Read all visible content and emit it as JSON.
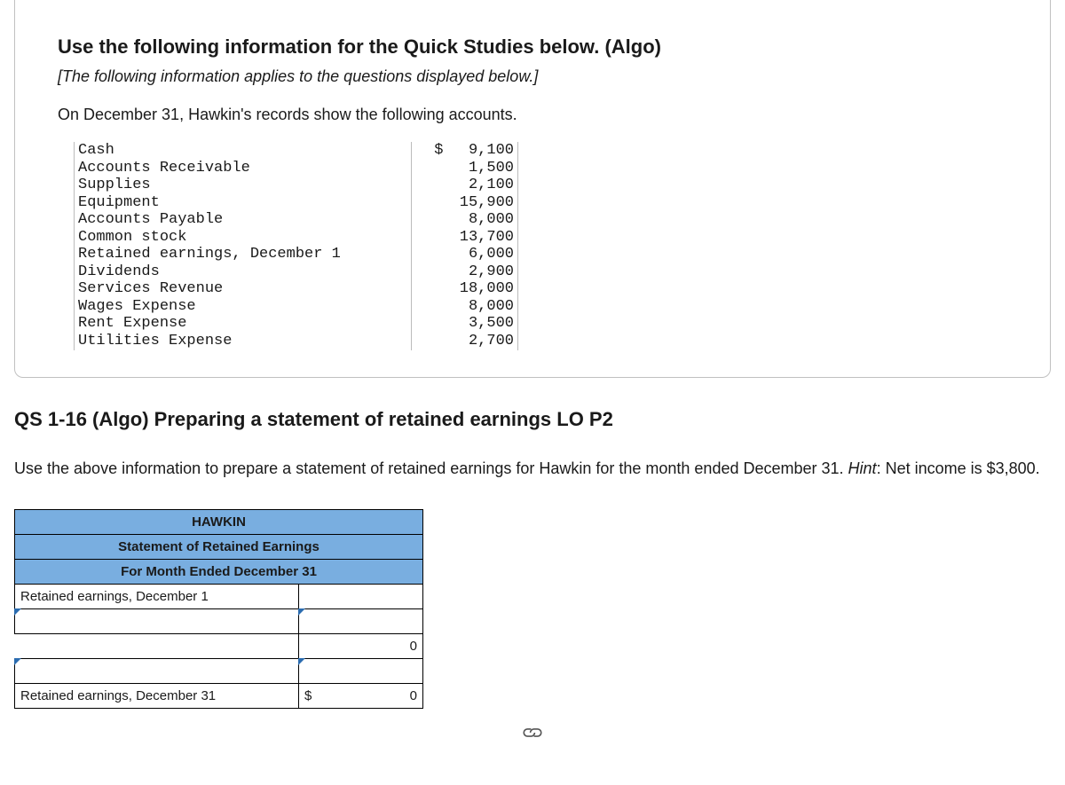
{
  "card": {
    "title": "Use the following information for the Quick Studies below. (Algo)",
    "applies_note": "[The following information applies to the questions displayed below.]",
    "intro": "On December 31, Hawkin's records show the following accounts."
  },
  "accounts": {
    "rows": [
      {
        "label": "Cash",
        "sym": "$ ",
        "value": "9,100"
      },
      {
        "label": "Accounts Receivable",
        "sym": "",
        "value": "1,500"
      },
      {
        "label": "Supplies",
        "sym": "",
        "value": "2,100"
      },
      {
        "label": "Equipment",
        "sym": "",
        "value": "15,900"
      },
      {
        "label": "Accounts Payable",
        "sym": "",
        "value": "8,000"
      },
      {
        "label": "Common stock",
        "sym": "",
        "value": "13,700"
      },
      {
        "label": "Retained earnings, December 1",
        "sym": "",
        "value": "6,000"
      },
      {
        "label": "Dividends",
        "sym": "",
        "value": "2,900"
      },
      {
        "label": "Services Revenue",
        "sym": "",
        "value": "18,000"
      },
      {
        "label": "Wages Expense",
        "sym": "",
        "value": "8,000"
      },
      {
        "label": "Rent Expense",
        "sym": "",
        "value": "3,500"
      },
      {
        "label": "Utilities Expense",
        "sym": "",
        "value": "2,700"
      }
    ]
  },
  "qs": {
    "heading": "QS 1-16 (Algo) Preparing a statement of retained earnings LO P2",
    "instructions_pre": "Use the above information to prepare a statement of retained earnings for Hawkin for the month ended December 31. ",
    "hint_label": "Hint",
    "instructions_post": ": Net income is $3,800."
  },
  "worksheet": {
    "company": "HAWKIN",
    "statement": "Statement of Retained Earnings",
    "period": "For Month Ended December 31",
    "row_begin_label": "Retained earnings, December 1",
    "row_begin_value": "",
    "row_add_label": "",
    "row_add_value": "",
    "row_subtotal_label": "",
    "row_subtotal_value": "0",
    "row_less_label": "",
    "row_less_value": "",
    "row_end_label": "Retained earnings, December 31",
    "row_end_sym": "$",
    "row_end_value": "0",
    "colors": {
      "header_bg": "#79aee0",
      "border": "#000000",
      "dashed": "#2b6cb0"
    }
  }
}
